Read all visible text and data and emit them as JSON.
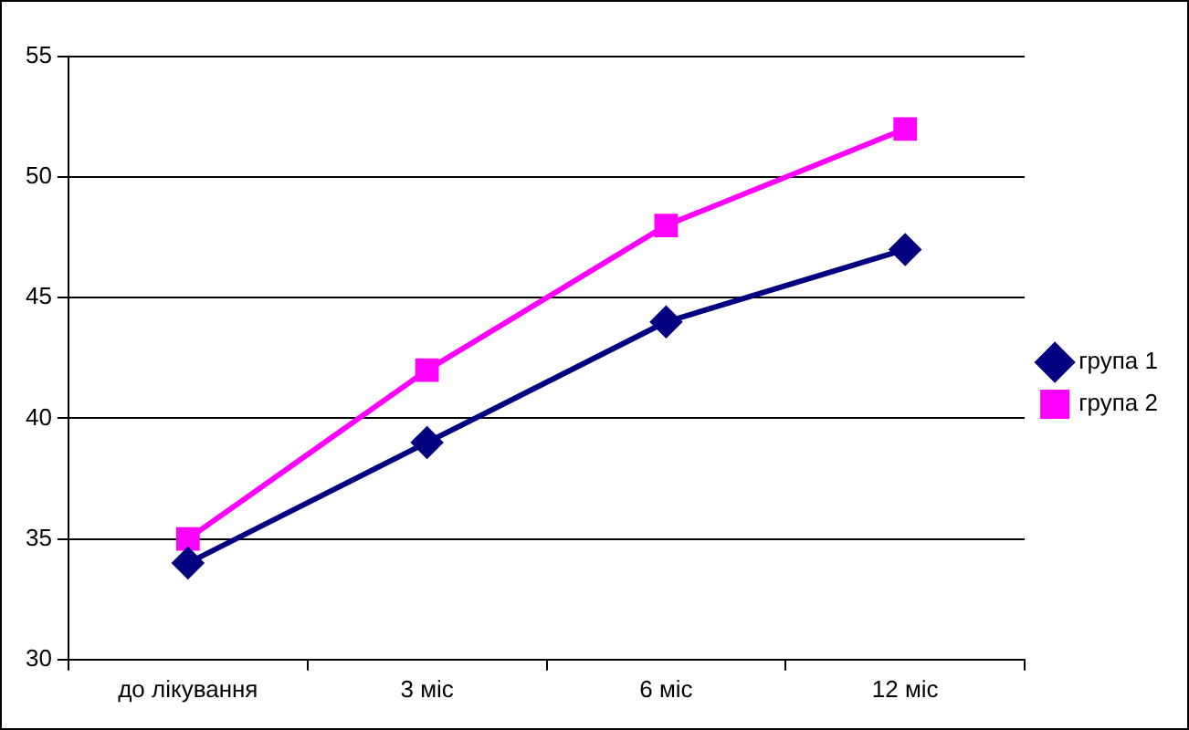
{
  "chart_data": {
    "type": "line",
    "categories": [
      "до лікування",
      "3 міс",
      "6 міс",
      "12 міс"
    ],
    "series": [
      {
        "name": "група 1",
        "color": "#000080",
        "values": [
          34,
          39,
          44,
          47
        ],
        "marker": "diamond"
      },
      {
        "name": "група 2",
        "color": "#ff00ff",
        "values": [
          35,
          42,
          48,
          52
        ],
        "marker": "square"
      }
    ],
    "ylim": [
      30,
      55
    ],
    "yticks": [
      30,
      35,
      40,
      45,
      50,
      55
    ],
    "grid": "y",
    "legend": "right",
    "line_style": "solid"
  }
}
